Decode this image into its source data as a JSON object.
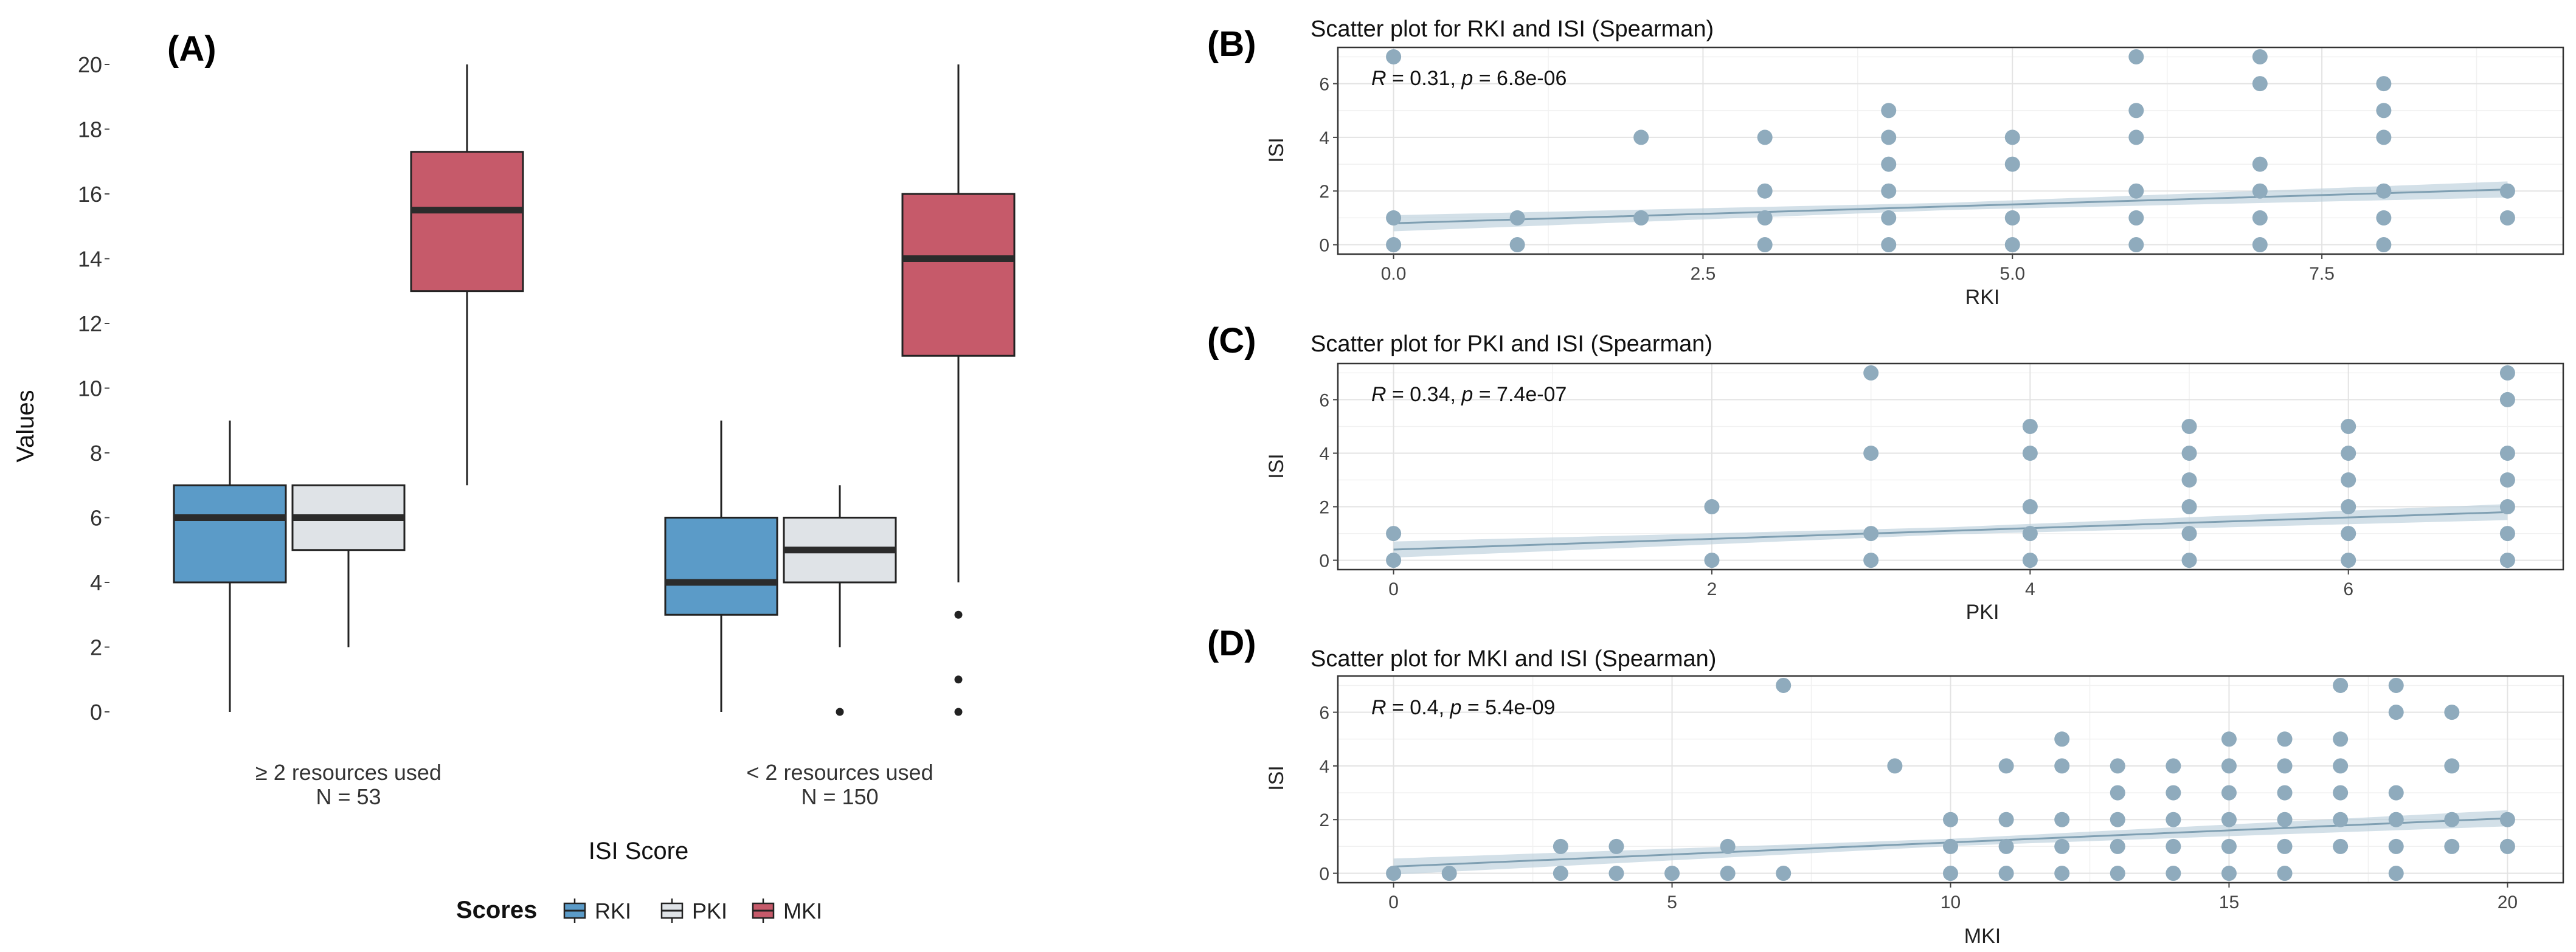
{
  "chart_data": [
    {
      "panel": "(A)",
      "type": "boxplot",
      "title": "",
      "xlabel": "ISI Score",
      "ylabel": "Values",
      "ylim": [
        0,
        20
      ],
      "yticks": [
        0,
        2,
        4,
        6,
        8,
        10,
        12,
        14,
        16,
        18,
        20
      ],
      "groups": [
        {
          "label": "≥ 2 resources used",
          "n_label": "N = 53"
        },
        {
          "label": "< 2 resources used",
          "n_label": "N = 150"
        }
      ],
      "legend": {
        "title": "Scores",
        "position": "bottom",
        "entries": [
          {
            "name": "RKI",
            "color": "#5b9bc8"
          },
          {
            "name": "PKI",
            "color": "#dfe3e7"
          },
          {
            "name": "MKI",
            "color": "#c65a6a"
          }
        ]
      },
      "boxes": [
        {
          "group": 0,
          "series": "RKI",
          "min": 0,
          "q1": 4,
          "median": 6,
          "q3": 7,
          "max": 9,
          "outliers": []
        },
        {
          "group": 0,
          "series": "PKI",
          "min": 2,
          "q1": 5,
          "median": 6,
          "q3": 7,
          "max": 7,
          "outliers": []
        },
        {
          "group": 0,
          "series": "MKI",
          "min": 7,
          "q1": 13,
          "median": 15.5,
          "q3": 17.3,
          "max": 20,
          "outliers": []
        },
        {
          "group": 1,
          "series": "RKI",
          "min": 0,
          "q1": 3,
          "median": 4,
          "q3": 6,
          "max": 9,
          "outliers": []
        },
        {
          "group": 1,
          "series": "PKI",
          "min": 2,
          "q1": 4,
          "median": 5,
          "q3": 6,
          "max": 7,
          "outliers": [
            0
          ]
        },
        {
          "group": 1,
          "series": "MKI",
          "min": 4,
          "q1": 11,
          "median": 14,
          "q3": 16,
          "max": 20,
          "outliers": [
            3,
            1,
            0
          ]
        }
      ]
    },
    {
      "panel": "(B)",
      "type": "scatter",
      "title": "Scatter plot for RKI and ISI (Spearman)",
      "xlabel": "RKI",
      "ylabel": "ISI",
      "xlim": [
        -0.45,
        9.45
      ],
      "ylim": [
        -0.35,
        7.35
      ],
      "xticks": [
        0,
        2.5,
        5,
        7.5
      ],
      "xtick_labels": [
        "0.0",
        "2.5",
        "5.0",
        "7.5"
      ],
      "yticks": [
        0,
        2,
        4,
        6
      ],
      "ytick_labels": [
        "0",
        "2",
        "4",
        "6"
      ],
      "xgrid_minor": [
        1.25,
        3.75,
        6.25,
        8.75
      ],
      "annotation": {
        "prefix": "R",
        "r_text": " = 0.31, ",
        "p_label": "p",
        "p_text": " = 6.8e-06"
      },
      "fit": {
        "intercept": 0.8,
        "slope": 0.14,
        "band": 0.3
      },
      "points": [
        [
          0,
          7
        ],
        [
          0,
          1
        ],
        [
          0,
          0
        ],
        [
          1,
          1
        ],
        [
          1,
          0
        ],
        [
          2,
          4
        ],
        [
          2,
          1
        ],
        [
          3,
          4
        ],
        [
          3,
          2
        ],
        [
          3,
          1
        ],
        [
          3,
          0
        ],
        [
          4,
          5
        ],
        [
          4,
          4
        ],
        [
          4,
          3
        ],
        [
          4,
          2
        ],
        [
          4,
          1
        ],
        [
          4,
          0
        ],
        [
          5,
          4
        ],
        [
          5,
          3
        ],
        [
          5,
          1
        ],
        [
          5,
          0
        ],
        [
          6,
          7
        ],
        [
          6,
          5
        ],
        [
          6,
          4
        ],
        [
          6,
          2
        ],
        [
          6,
          1
        ],
        [
          6,
          0
        ],
        [
          7,
          7
        ],
        [
          7,
          6
        ],
        [
          7,
          3
        ],
        [
          7,
          2
        ],
        [
          7,
          1
        ],
        [
          7,
          0
        ],
        [
          8,
          6
        ],
        [
          8,
          5
        ],
        [
          8,
          4
        ],
        [
          8,
          2
        ],
        [
          8,
          1
        ],
        [
          8,
          0
        ],
        [
          9,
          2
        ],
        [
          9,
          1
        ]
      ]
    },
    {
      "panel": "(C)",
      "type": "scatter",
      "title": "Scatter plot for PKI and ISI (Spearman)",
      "xlabel": "PKI",
      "ylabel": "ISI",
      "xlim": [
        -0.35,
        7.35
      ],
      "ylim": [
        -0.35,
        7.35
      ],
      "xticks": [
        0,
        2,
        4,
        6
      ],
      "xtick_labels": [
        "0",
        "2",
        "4",
        "6"
      ],
      "yticks": [
        0,
        2,
        4,
        6
      ],
      "ytick_labels": [
        "0",
        "2",
        "4",
        "6"
      ],
      "xgrid_minor": [
        1,
        3,
        5,
        7
      ],
      "annotation": {
        "prefix": "R",
        "r_text": " = 0.34, ",
        "p_label": "p",
        "p_text": " = 7.4e-07"
      },
      "fit": {
        "intercept": 0.4,
        "slope": 0.2,
        "band": 0.3
      },
      "points": [
        [
          0,
          1
        ],
        [
          0,
          0
        ],
        [
          2,
          2
        ],
        [
          2,
          0
        ],
        [
          3,
          7
        ],
        [
          3,
          4
        ],
        [
          3,
          1
        ],
        [
          3,
          0
        ],
        [
          4,
          5
        ],
        [
          4,
          4
        ],
        [
          4,
          2
        ],
        [
          4,
          1
        ],
        [
          4,
          0
        ],
        [
          5,
          5
        ],
        [
          5,
          4
        ],
        [
          5,
          3
        ],
        [
          5,
          2
        ],
        [
          5,
          1
        ],
        [
          5,
          0
        ],
        [
          6,
          5
        ],
        [
          6,
          4
        ],
        [
          6,
          3
        ],
        [
          6,
          2
        ],
        [
          6,
          1
        ],
        [
          6,
          0
        ],
        [
          7,
          7
        ],
        [
          7,
          6
        ],
        [
          7,
          4
        ],
        [
          7,
          3
        ],
        [
          7,
          2
        ],
        [
          7,
          1
        ],
        [
          7,
          0
        ]
      ]
    },
    {
      "panel": "(D)",
      "type": "scatter",
      "title": "Scatter plot for MKI and ISI (Spearman)",
      "xlabel": "MKI",
      "ylabel": "ISI",
      "xlim": [
        -1,
        21
      ],
      "ylim": [
        -0.35,
        7.35
      ],
      "xticks": [
        0,
        5,
        10,
        15,
        20
      ],
      "xtick_labels": [
        "0",
        "5",
        "10",
        "15",
        "20"
      ],
      "yticks": [
        0,
        2,
        4,
        6
      ],
      "ytick_labels": [
        "0",
        "2",
        "4",
        "6"
      ],
      "xgrid_minor": [
        2.5,
        7.5,
        12.5,
        17.5
      ],
      "annotation": {
        "prefix": "R",
        "r_text": " = 0.4, ",
        "p_label": "p",
        "p_text": " = 5.4e-09"
      },
      "fit": {
        "intercept": 0.25,
        "slope": 0.09,
        "band": 0.3
      },
      "points": [
        [
          0,
          0
        ],
        [
          1,
          0
        ],
        [
          3,
          1
        ],
        [
          3,
          0
        ],
        [
          4,
          1
        ],
        [
          4,
          0
        ],
        [
          5,
          0
        ],
        [
          6,
          1
        ],
        [
          6,
          0
        ],
        [
          7,
          7
        ],
        [
          7,
          0
        ],
        [
          9,
          4
        ],
        [
          10,
          2
        ],
        [
          10,
          1
        ],
        [
          10,
          0
        ],
        [
          11,
          4
        ],
        [
          11,
          2
        ],
        [
          11,
          1
        ],
        [
          11,
          0
        ],
        [
          12,
          5
        ],
        [
          12,
          4
        ],
        [
          12,
          2
        ],
        [
          12,
          1
        ],
        [
          12,
          0
        ],
        [
          13,
          4
        ],
        [
          13,
          3
        ],
        [
          13,
          2
        ],
        [
          13,
          1
        ],
        [
          13,
          0
        ],
        [
          14,
          4
        ],
        [
          14,
          3
        ],
        [
          14,
          2
        ],
        [
          14,
          1
        ],
        [
          14,
          0
        ],
        [
          15,
          5
        ],
        [
          15,
          4
        ],
        [
          15,
          3
        ],
        [
          15,
          2
        ],
        [
          15,
          1
        ],
        [
          15,
          0
        ],
        [
          16,
          5
        ],
        [
          16,
          4
        ],
        [
          16,
          3
        ],
        [
          16,
          2
        ],
        [
          16,
          1
        ],
        [
          16,
          0
        ],
        [
          17,
          7
        ],
        [
          17,
          5
        ],
        [
          17,
          4
        ],
        [
          17,
          3
        ],
        [
          17,
          2
        ],
        [
          17,
          1
        ],
        [
          18,
          7
        ],
        [
          18,
          6
        ],
        [
          18,
          3
        ],
        [
          18,
          2
        ],
        [
          18,
          1
        ],
        [
          18,
          0
        ],
        [
          19,
          6
        ],
        [
          19,
          4
        ],
        [
          19,
          2
        ],
        [
          19,
          1
        ],
        [
          20,
          2
        ],
        [
          20,
          1
        ]
      ]
    }
  ]
}
